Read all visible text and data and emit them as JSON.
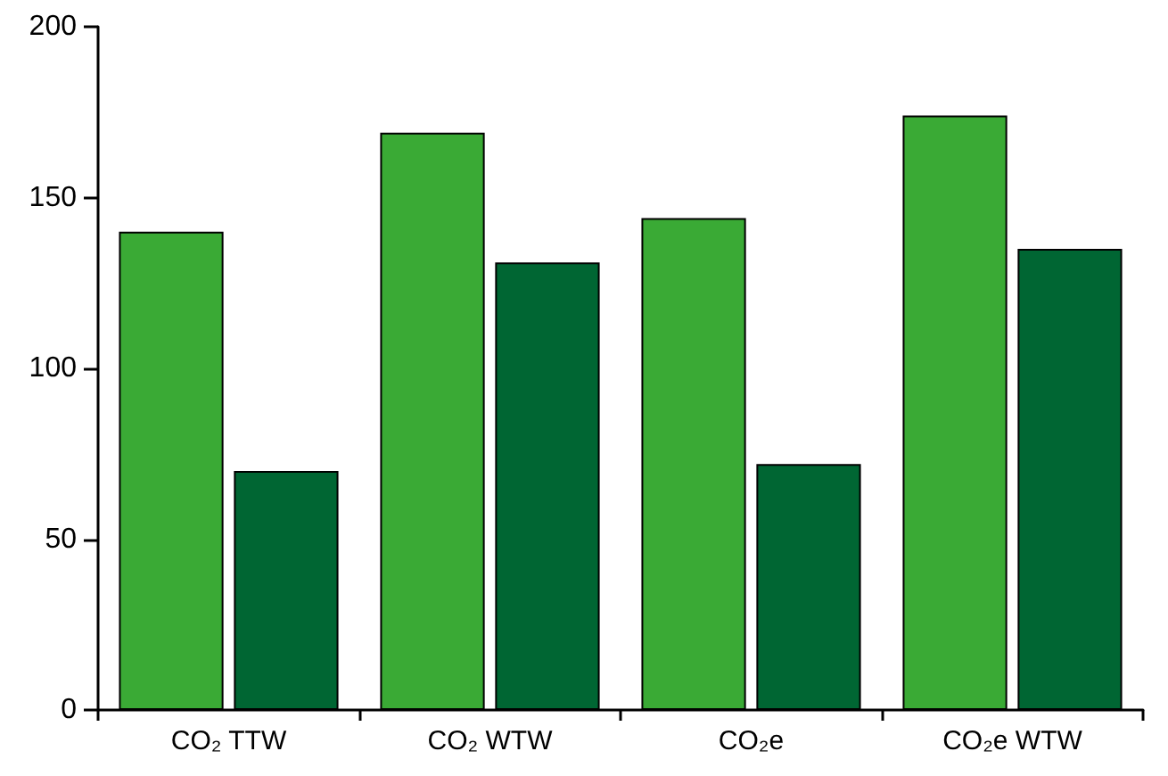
{
  "chart_data": {
    "type": "bar",
    "categories": [
      "CO₂ TTW",
      "CO₂ WTW",
      "CO₂e",
      "CO₂e WTW"
    ],
    "series": [
      {
        "color": "#3aaa35",
        "values": [
          140,
          169,
          144,
          174
        ]
      },
      {
        "color": "#006633",
        "values": [
          70,
          131,
          72,
          135
        ]
      }
    ],
    "ylim": [
      0,
      200
    ],
    "yticks": [
      0,
      50,
      100,
      150,
      200
    ],
    "grid": false
  }
}
